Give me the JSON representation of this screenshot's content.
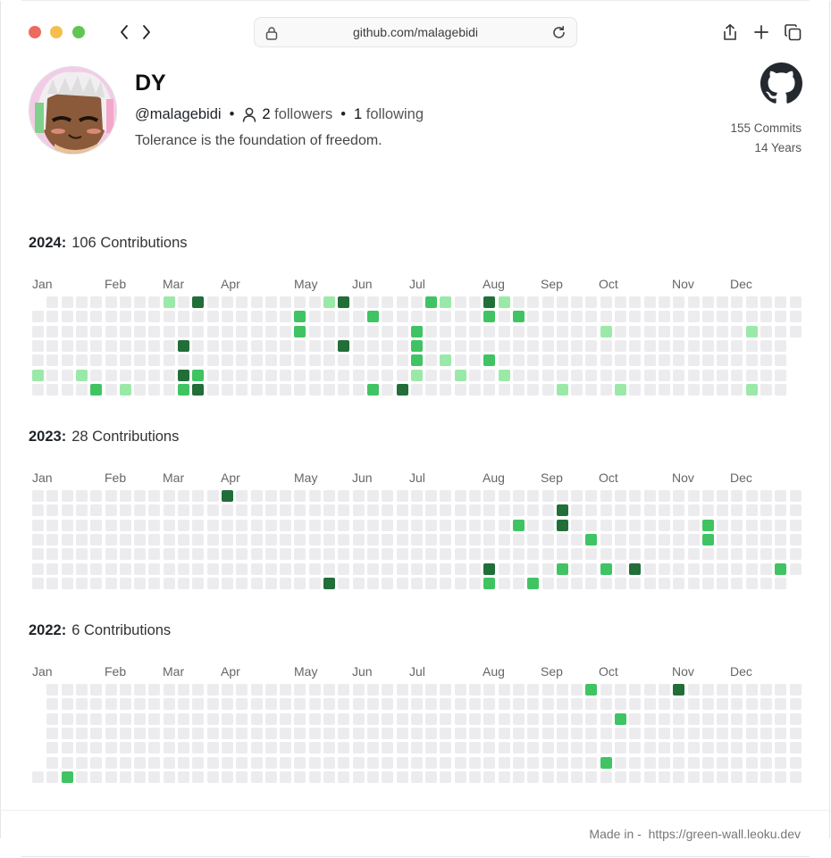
{
  "browser": {
    "url": "github.com/malagebidi"
  },
  "profile": {
    "name": "DY",
    "handle": "@malagebidi",
    "followers_count": "2",
    "followers_label": "followers",
    "following_count": "1",
    "following_label": "following",
    "bio": "Tolerance is the foundation of freedom.",
    "commits": "155 Commits",
    "years": "14 Years"
  },
  "months": [
    "Jan",
    "Feb",
    "Mar",
    "Apr",
    "May",
    "Jun",
    "Jul",
    "Aug",
    "Sep",
    "Oct",
    "Nov",
    "Dec"
  ],
  "colors": {
    "empty": "#ececef",
    "level1": "#9be9a8",
    "level2": "#40c463",
    "level3": "#216e39"
  },
  "years": [
    {
      "year": "2024:",
      "contributions": "106 Contributions",
      "weeks": 53,
      "first_row": 1,
      "cells": [
        [
          9,
          0,
          1
        ],
        [
          11,
          0,
          3
        ],
        [
          20,
          0,
          1
        ],
        [
          21,
          0,
          3
        ],
        [
          27,
          0,
          2
        ],
        [
          28,
          0,
          1
        ],
        [
          31,
          0,
          3
        ],
        [
          32,
          0,
          1
        ],
        [
          18,
          1,
          2
        ],
        [
          23,
          1,
          2
        ],
        [
          31,
          1,
          2
        ],
        [
          33,
          1,
          2
        ],
        [
          18,
          2,
          2
        ],
        [
          26,
          2,
          2
        ],
        [
          39,
          2,
          1
        ],
        [
          49,
          2,
          1
        ],
        [
          10,
          3,
          3
        ],
        [
          21,
          3,
          3
        ],
        [
          26,
          3,
          2
        ],
        [
          26,
          4,
          2
        ],
        [
          28,
          4,
          1
        ],
        [
          31,
          4,
          2
        ],
        [
          0,
          5,
          1
        ],
        [
          3,
          5,
          1
        ],
        [
          10,
          5,
          3
        ],
        [
          11,
          5,
          2
        ],
        [
          26,
          5,
          1
        ],
        [
          29,
          5,
          1
        ],
        [
          32,
          5,
          1
        ],
        [
          4,
          6,
          2
        ],
        [
          6,
          6,
          1
        ],
        [
          10,
          6,
          2
        ],
        [
          11,
          6,
          3
        ],
        [
          23,
          6,
          2
        ],
        [
          25,
          6,
          3
        ],
        [
          36,
          6,
          1
        ],
        [
          40,
          6,
          1
        ],
        [
          49,
          6,
          1
        ]
      ]
    },
    {
      "year": "2023:",
      "contributions": "28 Contributions",
      "weeks": 53,
      "first_row": 0,
      "cells": [
        [
          13,
          0,
          3
        ],
        [
          36,
          1,
          3
        ],
        [
          33,
          2,
          2
        ],
        [
          36,
          2,
          3
        ],
        [
          46,
          2,
          2
        ],
        [
          38,
          3,
          2
        ],
        [
          46,
          3,
          2
        ],
        [
          31,
          5,
          3
        ],
        [
          36,
          5,
          2
        ],
        [
          39,
          5,
          2
        ],
        [
          41,
          5,
          3
        ],
        [
          51,
          5,
          2
        ],
        [
          20,
          6,
          3
        ],
        [
          31,
          6,
          2
        ],
        [
          34,
          6,
          2
        ]
      ]
    },
    {
      "year": "2022:",
      "contributions": "6 Contributions",
      "weeks": 53,
      "first_row": 6,
      "cells": [
        [
          38,
          0,
          2
        ],
        [
          44,
          0,
          3
        ],
        [
          40,
          2,
          2
        ],
        [
          39,
          5,
          2
        ],
        [
          2,
          6,
          2
        ]
      ]
    }
  ],
  "footer": {
    "made_in": "Made in -",
    "link": "https://green-wall.leoku.dev"
  }
}
